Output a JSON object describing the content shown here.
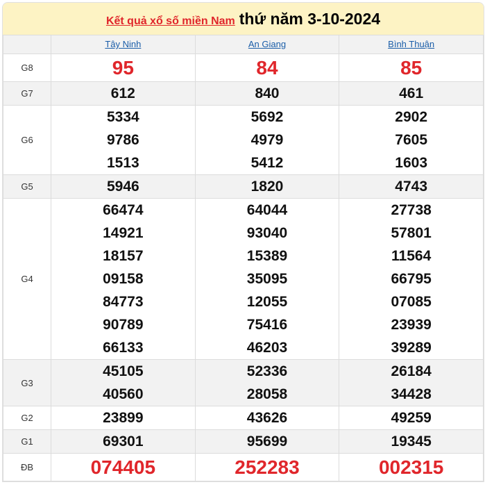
{
  "header": {
    "link": "Kết quả xổ số miền Nam",
    "date": "thứ năm 3-10-2024"
  },
  "provinces": [
    "Tây Ninh",
    "An Giang",
    "Bình Thuận"
  ],
  "colors": {
    "accent": "#e0262b",
    "link": "#1a5da8",
    "title_bg": "#fdf3c4"
  },
  "prizes": [
    {
      "label": "G8",
      "big": true,
      "values": [
        [
          "95"
        ],
        [
          "84"
        ],
        [
          "85"
        ]
      ]
    },
    {
      "label": "G7",
      "values": [
        [
          "612"
        ],
        [
          "840"
        ],
        [
          "461"
        ]
      ]
    },
    {
      "label": "G6",
      "values": [
        [
          "5334",
          "9786",
          "1513"
        ],
        [
          "5692",
          "4979",
          "5412"
        ],
        [
          "2902",
          "7605",
          "1603"
        ]
      ]
    },
    {
      "label": "G5",
      "values": [
        [
          "5946"
        ],
        [
          "1820"
        ],
        [
          "4743"
        ]
      ]
    },
    {
      "label": "G4",
      "values": [
        [
          "66474",
          "14921",
          "18157",
          "09158",
          "84773",
          "90789",
          "66133"
        ],
        [
          "64044",
          "93040",
          "15389",
          "35095",
          "12055",
          "75416",
          "46203"
        ],
        [
          "27738",
          "57801",
          "11564",
          "66795",
          "07085",
          "23939",
          "39289"
        ]
      ]
    },
    {
      "label": "G3",
      "values": [
        [
          "45105",
          "40560"
        ],
        [
          "52336",
          "28058"
        ],
        [
          "26184",
          "34428"
        ]
      ]
    },
    {
      "label": "G2",
      "values": [
        [
          "23899"
        ],
        [
          "43626"
        ],
        [
          "49259"
        ]
      ]
    },
    {
      "label": "G1",
      "values": [
        [
          "69301"
        ],
        [
          "95699"
        ],
        [
          "19345"
        ]
      ]
    },
    {
      "label": "ĐB",
      "big": true,
      "values": [
        [
          "074405"
        ],
        [
          "252283"
        ],
        [
          "002315"
        ]
      ]
    }
  ]
}
